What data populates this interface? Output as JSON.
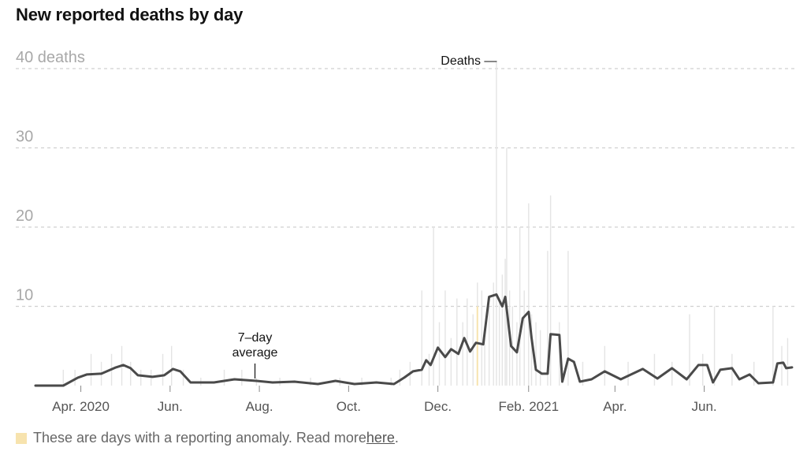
{
  "title": "New reported deaths by day",
  "footnote": {
    "text": "These are days with a reporting anomaly. Read more ",
    "link_text": "here",
    "suffix": ".",
    "anomaly_color": "#f7e3ae"
  },
  "chart_data": {
    "type": "bar",
    "title": "New reported deaths by day",
    "x_range": [
      "2020-03-01",
      "2021-07-31"
    ],
    "ylim": [
      0,
      40
    ],
    "y_ticks": [
      {
        "value": 10,
        "label": "10"
      },
      {
        "value": 20,
        "label": "20"
      },
      {
        "value": 30,
        "label": "30"
      },
      {
        "value": 40,
        "label": "40 deaths"
      }
    ],
    "x_ticks": [
      {
        "date": "2020-04-01",
        "label": "Apr. 2020"
      },
      {
        "date": "2020-06-01",
        "label": "Jun."
      },
      {
        "date": "2020-08-01",
        "label": "Aug."
      },
      {
        "date": "2020-10-01",
        "label": "Oct."
      },
      {
        "date": "2020-12-01",
        "label": "Dec."
      },
      {
        "date": "2021-02-01",
        "label": "Feb. 2021"
      },
      {
        "date": "2021-04-01",
        "label": "Apr."
      },
      {
        "date": "2021-06-01",
        "label": "Jun."
      }
    ],
    "grid": true,
    "colors": {
      "bars": "#e4e4e4",
      "average_line": "#4a4a4a",
      "anomaly": "#f7e3ae",
      "grid": "#d0d0d0"
    },
    "series": [
      {
        "name": "Deaths",
        "kind": "daily_bars",
        "points": [
          {
            "date": "2020-03-20",
            "value": 2
          },
          {
            "date": "2020-03-28",
            "value": 2
          },
          {
            "date": "2020-04-08",
            "value": 4
          },
          {
            "date": "2020-04-15",
            "value": 3
          },
          {
            "date": "2020-04-22",
            "value": 4
          },
          {
            "date": "2020-04-29",
            "value": 5
          },
          {
            "date": "2020-05-05",
            "value": 3
          },
          {
            "date": "2020-05-12",
            "value": 2
          },
          {
            "date": "2020-05-19",
            "value": 2
          },
          {
            "date": "2020-05-27",
            "value": 4
          },
          {
            "date": "2020-06-02",
            "value": 5
          },
          {
            "date": "2020-06-10",
            "value": 2
          },
          {
            "date": "2020-06-22",
            "value": 1
          },
          {
            "date": "2020-07-08",
            "value": 2
          },
          {
            "date": "2020-07-20",
            "value": 2
          },
          {
            "date": "2020-07-30",
            "value": 1
          },
          {
            "date": "2020-08-15",
            "value": 1
          },
          {
            "date": "2020-09-05",
            "value": 1
          },
          {
            "date": "2020-09-25",
            "value": 1
          },
          {
            "date": "2020-10-10",
            "value": 1
          },
          {
            "date": "2020-10-30",
            "value": 1
          },
          {
            "date": "2020-11-05",
            "value": 2
          },
          {
            "date": "2020-11-12",
            "value": 3
          },
          {
            "date": "2020-11-20",
            "value": 12
          },
          {
            "date": "2020-11-25",
            "value": 4
          },
          {
            "date": "2020-11-28",
            "value": 20
          },
          {
            "date": "2020-12-02",
            "value": 8
          },
          {
            "date": "2020-12-06",
            "value": 12
          },
          {
            "date": "2020-12-10",
            "value": 6
          },
          {
            "date": "2020-12-14",
            "value": 11
          },
          {
            "date": "2020-12-18",
            "value": 8
          },
          {
            "date": "2020-12-21",
            "value": 11
          },
          {
            "date": "2020-12-25",
            "value": 9
          },
          {
            "date": "2020-12-28",
            "value": 13
          },
          {
            "date": "2020-12-31",
            "value": 12
          },
          {
            "date": "2021-01-02",
            "value": 6
          },
          {
            "date": "2021-01-05",
            "value": 10
          },
          {
            "date": "2021-01-08",
            "value": 13
          },
          {
            "date": "2021-01-10",
            "value": 41
          },
          {
            "date": "2021-01-12",
            "value": 11
          },
          {
            "date": "2021-01-14",
            "value": 14
          },
          {
            "date": "2021-01-16",
            "value": 16
          },
          {
            "date": "2021-01-17",
            "value": 30
          },
          {
            "date": "2021-01-19",
            "value": 12
          },
          {
            "date": "2021-01-21",
            "value": 10
          },
          {
            "date": "2021-01-24",
            "value": 8
          },
          {
            "date": "2021-01-26",
            "value": 20
          },
          {
            "date": "2021-01-29",
            "value": 12
          },
          {
            "date": "2021-02-01",
            "value": 23
          },
          {
            "date": "2021-02-03",
            "value": 9
          },
          {
            "date": "2021-02-06",
            "value": 8
          },
          {
            "date": "2021-02-09",
            "value": 7
          },
          {
            "date": "2021-02-14",
            "value": 17
          },
          {
            "date": "2021-02-16",
            "value": 24
          },
          {
            "date": "2021-02-22",
            "value": 8
          },
          {
            "date": "2021-02-28",
            "value": 17
          },
          {
            "date": "2021-03-10",
            "value": 3
          },
          {
            "date": "2021-03-25",
            "value": 5
          },
          {
            "date": "2021-04-10",
            "value": 3
          },
          {
            "date": "2021-04-28",
            "value": 4
          },
          {
            "date": "2021-05-10",
            "value": 3
          },
          {
            "date": "2021-05-22",
            "value": 9
          },
          {
            "date": "2021-05-31",
            "value": 4
          },
          {
            "date": "2021-06-08",
            "value": 10
          },
          {
            "date": "2021-06-20",
            "value": 4
          },
          {
            "date": "2021-07-05",
            "value": 3
          },
          {
            "date": "2021-07-18",
            "value": 10
          },
          {
            "date": "2021-07-24",
            "value": 5
          },
          {
            "date": "2021-07-28",
            "value": 6
          }
        ],
        "anomalies": [
          {
            "date": "2020-12-28",
            "value": 10
          }
        ]
      },
      {
        "name": "7–day average",
        "kind": "line",
        "points": [
          {
            "date": "2020-03-01",
            "value": 0
          },
          {
            "date": "2020-03-20",
            "value": 0
          },
          {
            "date": "2020-03-30",
            "value": 1
          },
          {
            "date": "2020-04-05",
            "value": 1.4
          },
          {
            "date": "2020-04-15",
            "value": 1.5
          },
          {
            "date": "2020-04-25",
            "value": 2.3
          },
          {
            "date": "2020-04-30",
            "value": 2.6
          },
          {
            "date": "2020-05-05",
            "value": 2.2
          },
          {
            "date": "2020-05-10",
            "value": 1.3
          },
          {
            "date": "2020-05-20",
            "value": 1.1
          },
          {
            "date": "2020-05-28",
            "value": 1.3
          },
          {
            "date": "2020-06-03",
            "value": 2.1
          },
          {
            "date": "2020-06-08",
            "value": 1.8
          },
          {
            "date": "2020-06-15",
            "value": 0.4
          },
          {
            "date": "2020-07-01",
            "value": 0.4
          },
          {
            "date": "2020-07-15",
            "value": 0.8
          },
          {
            "date": "2020-07-30",
            "value": 0.6
          },
          {
            "date": "2020-08-10",
            "value": 0.4
          },
          {
            "date": "2020-08-25",
            "value": 0.5
          },
          {
            "date": "2020-09-10",
            "value": 0.2
          },
          {
            "date": "2020-09-22",
            "value": 0.6
          },
          {
            "date": "2020-10-05",
            "value": 0.2
          },
          {
            "date": "2020-10-20",
            "value": 0.4
          },
          {
            "date": "2020-11-01",
            "value": 0.2
          },
          {
            "date": "2020-11-08",
            "value": 1
          },
          {
            "date": "2020-11-14",
            "value": 1.8
          },
          {
            "date": "2020-11-20",
            "value": 2
          },
          {
            "date": "2020-11-23",
            "value": 3.2
          },
          {
            "date": "2020-11-26",
            "value": 2.6
          },
          {
            "date": "2020-12-01",
            "value": 4.8
          },
          {
            "date": "2020-12-06",
            "value": 3.6
          },
          {
            "date": "2020-12-10",
            "value": 4.6
          },
          {
            "date": "2020-12-15",
            "value": 4
          },
          {
            "date": "2020-12-19",
            "value": 6
          },
          {
            "date": "2020-12-23",
            "value": 4.3
          },
          {
            "date": "2020-12-27",
            "value": 5.4
          },
          {
            "date": "2021-01-01",
            "value": 5.2
          },
          {
            "date": "2021-01-05",
            "value": 11.2
          },
          {
            "date": "2021-01-10",
            "value": 11.5
          },
          {
            "date": "2021-01-14",
            "value": 10
          },
          {
            "date": "2021-01-16",
            "value": 11.2
          },
          {
            "date": "2021-01-20",
            "value": 5
          },
          {
            "date": "2021-01-24",
            "value": 4.2
          },
          {
            "date": "2021-01-28",
            "value": 8.5
          },
          {
            "date": "2021-02-01",
            "value": 9.3
          },
          {
            "date": "2021-02-03",
            "value": 6
          },
          {
            "date": "2021-02-06",
            "value": 2
          },
          {
            "date": "2021-02-10",
            "value": 1.5
          },
          {
            "date": "2021-02-14",
            "value": 1.5
          },
          {
            "date": "2021-02-16",
            "value": 6.5
          },
          {
            "date": "2021-02-22",
            "value": 6.4
          },
          {
            "date": "2021-02-24",
            "value": 0.5
          },
          {
            "date": "2021-02-28",
            "value": 3.4
          },
          {
            "date": "2021-03-04",
            "value": 3
          },
          {
            "date": "2021-03-08",
            "value": 0.5
          },
          {
            "date": "2021-03-16",
            "value": 0.8
          },
          {
            "date": "2021-03-25",
            "value": 1.8
          },
          {
            "date": "2021-04-05",
            "value": 0.8
          },
          {
            "date": "2021-04-20",
            "value": 2.1
          },
          {
            "date": "2021-04-30",
            "value": 0.9
          },
          {
            "date": "2021-05-10",
            "value": 2.2
          },
          {
            "date": "2021-05-20",
            "value": 0.8
          },
          {
            "date": "2021-05-28",
            "value": 2.6
          },
          {
            "date": "2021-06-03",
            "value": 2.6
          },
          {
            "date": "2021-06-07",
            "value": 0.4
          },
          {
            "date": "2021-06-12",
            "value": 2
          },
          {
            "date": "2021-06-20",
            "value": 2.2
          },
          {
            "date": "2021-06-25",
            "value": 0.8
          },
          {
            "date": "2021-07-02",
            "value": 1.4
          },
          {
            "date": "2021-07-08",
            "value": 0.3
          },
          {
            "date": "2021-07-18",
            "value": 0.4
          },
          {
            "date": "2021-07-21",
            "value": 2.8
          },
          {
            "date": "2021-07-25",
            "value": 2.9
          },
          {
            "date": "2021-07-27",
            "value": 2.2
          },
          {
            "date": "2021-07-31",
            "value": 2.3
          }
        ]
      }
    ],
    "annotations": [
      {
        "text": "Deaths —",
        "target": "bars",
        "date": "2021-01-10"
      },
      {
        "text": "7–day average",
        "lines": [
          "7–day",
          "average"
        ],
        "target": "line",
        "date": "2020-07-29"
      }
    ]
  }
}
